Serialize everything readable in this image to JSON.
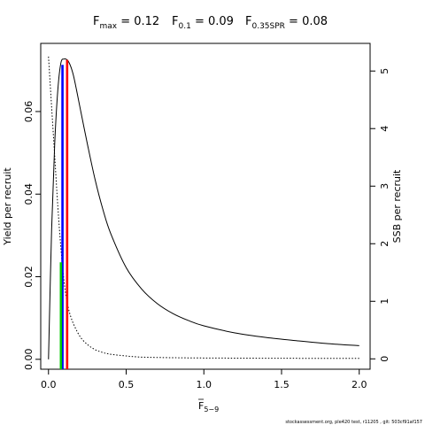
{
  "title": {
    "fmax": {
      "base": "F",
      "sub": "max",
      "value": " = 0.12"
    },
    "f01": {
      "base": "F",
      "sub": "0.1",
      "value": " = 0.09"
    },
    "fspr": {
      "base": "F",
      "sub": "0.35SPR",
      "value": " = 0.08"
    }
  },
  "footer": "stockassessment.org, ple420 test, r11205 , git: 503cf91af157",
  "chart_data": {
    "type": "line",
    "xlabel": {
      "base": "F",
      "sub": "5−9"
    },
    "ylabel_left": "Yield per recruit",
    "ylabel_right": "SSB per recruit",
    "xlim": [
      -0.05,
      2.07
    ],
    "ylim_left": [
      -0.0024,
      0.0765
    ],
    "ylim_right": [
      -0.18,
      5.48
    ],
    "x_ticks": [
      0,
      0.5,
      1,
      1.5,
      2
    ],
    "x_tick_labels": [
      "0.0",
      "0.5",
      "1.0",
      "1.5",
      "2.0"
    ],
    "y_left_ticks": [
      0,
      0.02,
      0.04,
      0.06
    ],
    "y_left_tick_labels": [
      "0.00",
      "0.02",
      "0.04",
      "0.06"
    ],
    "y_right_ticks": [
      0,
      1,
      2,
      3,
      4,
      5
    ],
    "y_right_tick_labels": [
      "0",
      "1",
      "2",
      "3",
      "4",
      "5"
    ],
    "grid": false,
    "series": [
      {
        "axis": "left",
        "style": "solid",
        "color": "#000000",
        "x": [
          0,
          0.02,
          0.04,
          0.06,
          0.08,
          0.1,
          0.12,
          0.14,
          0.16,
          0.18,
          0.2,
          0.25,
          0.3,
          0.35,
          0.4,
          0.5,
          0.6,
          0.7,
          0.8,
          0.9,
          1.0,
          1.2,
          1.4,
          1.6,
          1.8,
          2.0
        ],
        "values": [
          0,
          0.0313,
          0.0522,
          0.0652,
          0.0718,
          0.0727,
          0.0725,
          0.0712,
          0.0688,
          0.0653,
          0.0615,
          0.0522,
          0.0435,
          0.0363,
          0.0305,
          0.0222,
          0.017,
          0.0135,
          0.0111,
          0.0094,
          0.0081,
          0.0064,
          0.0053,
          0.0045,
          0.0038,
          0.0033
        ]
      },
      {
        "axis": "right",
        "style": "dotted",
        "color": "#000000",
        "x": [
          0,
          0.02,
          0.04,
          0.06,
          0.08,
          0.1,
          0.12,
          0.15,
          0.2,
          0.25,
          0.3,
          0.35,
          0.4,
          0.5,
          0.6,
          0.8,
          1.0,
          1.5,
          2.0
        ],
        "values": [
          5.25,
          4.38,
          3.52,
          2.65,
          1.92,
          1.35,
          0.98,
          0.68,
          0.4,
          0.25,
          0.16,
          0.11,
          0.08,
          0.05,
          0.03,
          0.02,
          0.015,
          0.01,
          0.008
        ]
      }
    ],
    "reference_lines": [
      {
        "name": "Fmax",
        "x": 0.12,
        "axis": "left",
        "y_top": 0.0725,
        "color": "#ff0000"
      },
      {
        "name": "F0.1",
        "x": 0.09,
        "axis": "left",
        "y_top": 0.0713,
        "color": "#0000ff"
      },
      {
        "name": "F0.35SPR",
        "x": 0.08,
        "axis": "left",
        "y_top": 0.0235,
        "color": "#00cc00"
      }
    ]
  }
}
